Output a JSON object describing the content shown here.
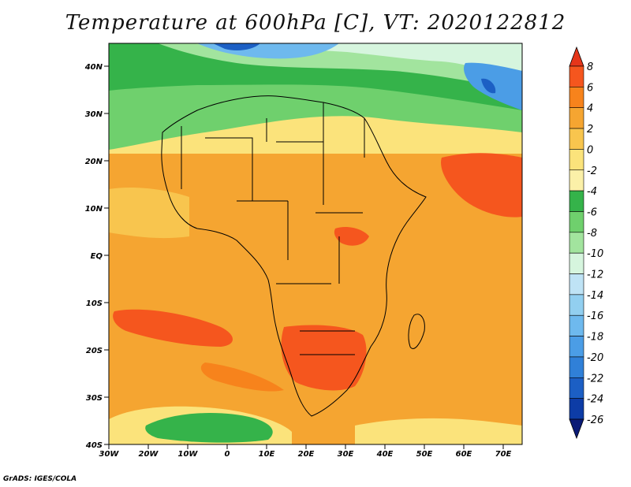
{
  "title": "Temperature at 600hPa [C], VT: 2020122812",
  "credit": "GrADS: IGES/COLA",
  "map": {
    "region": "Africa",
    "lon_labels": [
      "30W",
      "20W",
      "10W",
      "0",
      "10E",
      "20E",
      "30E",
      "40E",
      "50E",
      "60E",
      "70E"
    ],
    "lat_labels": [
      "40N",
      "30N",
      "20N",
      "10N",
      "EQ",
      "10S",
      "20S",
      "30S",
      "40S"
    ]
  },
  "colorbar": {
    "labels": [
      "8",
      "6",
      "4",
      "2",
      "0",
      "-2",
      "-4",
      "-6",
      "-8",
      "-10",
      "-12",
      "-14",
      "-16",
      "-18",
      "-20",
      "-22",
      "-24",
      "-26"
    ],
    "colors": [
      "#e5361a",
      "#f5561e",
      "#f7831c",
      "#f5a531",
      "#f8c54e",
      "#fbe37b",
      "#fbf0a8",
      "#35b34a",
      "#6fd06d",
      "#a2e49e",
      "#d6f5de",
      "#bfe3f5",
      "#92cff0",
      "#6eb9ee",
      "#4b9de6",
      "#3080d8",
      "#1c5fc4",
      "#0d3ca6",
      "#0a1a76"
    ]
  }
}
